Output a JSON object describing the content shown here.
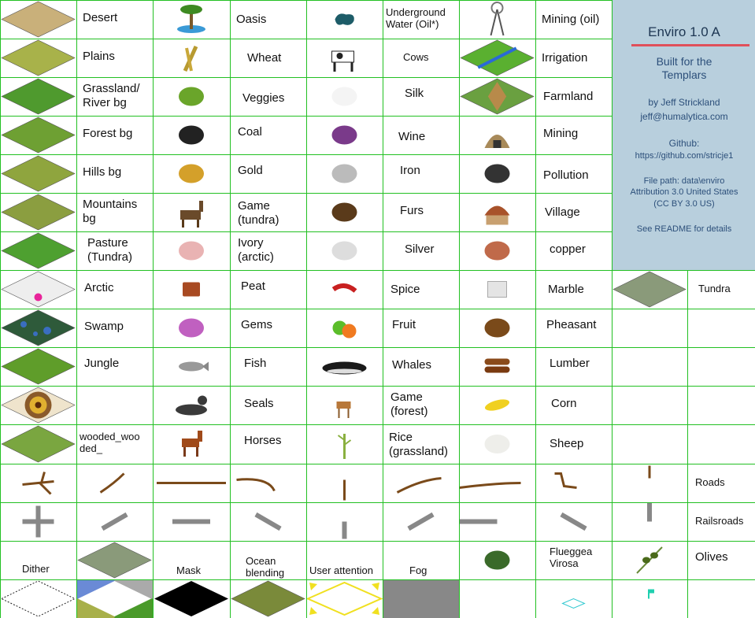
{
  "info": {
    "title": "Enviro 1.0 A",
    "built_for": "Built for the\nTemplars",
    "author": "by Jeff Strickland",
    "email": "jeff@humalytica.com",
    "github_label": "Github:",
    "github_url": "https://github.com/stricje1",
    "file_path": "File path: data\\enviro",
    "license": "Attribution 3.0 United States\n(CC BY 3.0 US)",
    "readme": "See README for details"
  },
  "labels": {
    "desert": "Desert",
    "oasis": "Oasis",
    "underground_water": "Underground\nWater (Oil*)",
    "mining_oil": "Mining  (oil)",
    "plains": "Plains",
    "wheat": "Wheat",
    "cows": "Cows",
    "irrigation": "Irrigation",
    "grassland": "Grassland/\nRiver bg",
    "veggies": "Veggies",
    "silk": "Silk",
    "farmland": "Farmland",
    "forest": "Forest bg",
    "coal": "Coal",
    "wine": "Wine",
    "mining": "Mining",
    "hills": "Hills bg",
    "gold": "Gold",
    "iron": "Iron",
    "pollution": "Pollution",
    "mountains": "Mountains\nbg",
    "game_tundra": "Game\n(tundra)",
    "furs": "Furs",
    "village": "Village",
    "pasture": "Pasture\n(Tundra)",
    "ivory": "Ivory\n(arctic)",
    "silver": "Silver",
    "copper": "copper",
    "arctic": "Arctic",
    "peat": "Peat",
    "spice": "Spice",
    "marble": "Marble",
    "tundra": "Tundra",
    "swamp": "Swamp",
    "gems": "Gems",
    "fruit": "Fruit",
    "pheasant": "Pheasant",
    "jungle": "Jungle",
    "fish": "Fish",
    "whales": "Whales",
    "lumber": "Lumber",
    "seals": "Seals",
    "game_forest": "Game\n(forest)",
    "corn": "Corn",
    "wooded": "wooded_woo\nded_",
    "horses": "Horses",
    "rice": "Rice\n(grassland)",
    "sheep": "Sheep",
    "roads": "Roads",
    "railroads": "Railsroads",
    "dither": "Dither",
    "mask": "Mask",
    "ocean_blending": "Ocean\nblending",
    "user_attention": "User attention",
    "fog": "Fog",
    "flueggea": "Flueggea\nVirosa",
    "olives": "Olives"
  },
  "colors": {
    "grid": "#22c022",
    "info_bg": "#b8cfdd",
    "title_underline": "#e0505a",
    "desert": "#c9b07a",
    "plains": "#a8b24a",
    "grassland": "#4f9a2e",
    "forest": "#6ea033",
    "hills": "#8fa53e",
    "mountains": "#8b9e40",
    "pasture": "#4ea030",
    "arctic": "#eeeeee",
    "swamp": "#2e5a3a",
    "jungle": "#5f9d2a",
    "wooded": "#7aa640",
    "tundra": "#8a9a7a",
    "road": "#7a4a1a",
    "rail": "#888888",
    "fog": "#888888"
  }
}
